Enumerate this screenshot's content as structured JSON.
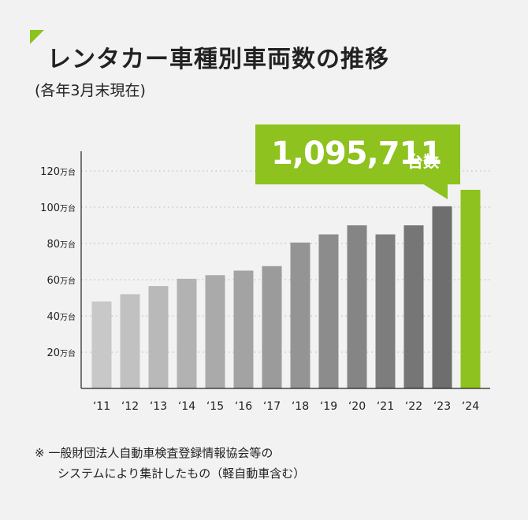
{
  "header": {
    "title": "レンタカー車種別車両数の推移",
    "subtitle": "(各年3月末現在)"
  },
  "callout": {
    "value": "1,095,711",
    "unit": "台数"
  },
  "footnote": {
    "line1": "※ 一般財団法人自動車検査登録情報協会等の",
    "line2": "システムにより集計したもの（軽自動車含む）"
  },
  "colors": {
    "highlight": "#8dc21f",
    "bar_light": "#c8c8c8",
    "bar_dark": "#6e6e6e",
    "background": "#f3f2f2"
  },
  "chart_data": {
    "type": "bar",
    "categories": [
      "‘11",
      "‘12",
      "‘13",
      "‘14",
      "‘15",
      "‘16",
      "‘17",
      "‘18",
      "‘19",
      "‘20",
      "‘21",
      "‘22",
      "‘23",
      "‘24"
    ],
    "values": [
      48,
      52,
      56.5,
      60.5,
      62.5,
      65,
      67.5,
      80.5,
      85,
      90,
      85,
      90,
      100.5,
      109.6
    ],
    "highlight_index": 13,
    "ylim": [
      0,
      120
    ],
    "yticks": [
      20,
      40,
      60,
      80,
      100,
      120
    ],
    "ytick_labels": [
      {
        "num": "20",
        "unit": "万台"
      },
      {
        "num": "40",
        "unit": "万台"
      },
      {
        "num": "60",
        "unit": "万台"
      },
      {
        "num": "80",
        "unit": "万台"
      },
      {
        "num": "100",
        "unit": "万台"
      },
      {
        "num": "120",
        "unit": "万台"
      }
    ],
    "grid": true
  }
}
